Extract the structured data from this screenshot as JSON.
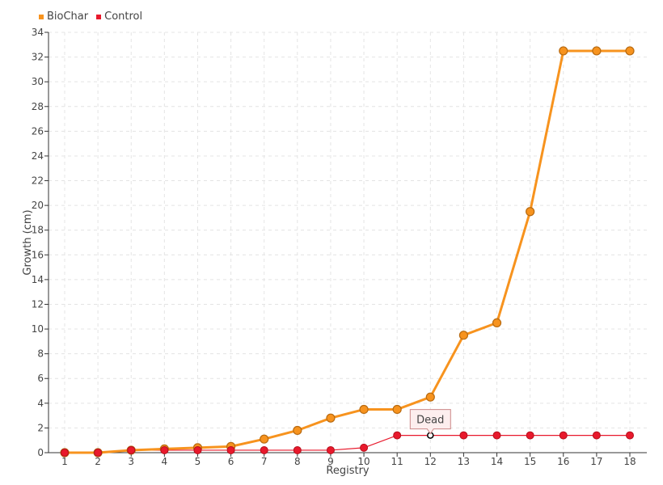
{
  "chart_data": {
    "type": "line",
    "title": "",
    "xlabel": "Registry",
    "ylabel": "Growth (cm)",
    "categories": [
      "1",
      "2",
      "3",
      "4",
      "5",
      "6",
      "7",
      "8",
      "9",
      "10",
      "11",
      "12",
      "13",
      "14",
      "15",
      "16",
      "17",
      "18"
    ],
    "ylim": [
      0,
      34
    ],
    "yticks": [
      0,
      2,
      4,
      6,
      8,
      10,
      12,
      14,
      16,
      18,
      20,
      22,
      24,
      26,
      28,
      30,
      32,
      34
    ],
    "grid": true,
    "legend_position": "top-left",
    "series": [
      {
        "name": "BioChar",
        "color": "#f7931e",
        "values": [
          0,
          0,
          0.2,
          0.3,
          0.4,
          0.5,
          1.1,
          1.8,
          2.8,
          3.5,
          3.5,
          4.5,
          9.5,
          10.5,
          19.5,
          32.5,
          32.5,
          32.5
        ]
      },
      {
        "name": "Control",
        "color": "#e8192c",
        "values": [
          0,
          0,
          0.2,
          0.2,
          0.2,
          0.2,
          0.2,
          0.2,
          0.2,
          0.4,
          1.4,
          1.4,
          1.4,
          1.4,
          1.4,
          1.4,
          1.4,
          1.4
        ]
      }
    ],
    "annotation": {
      "text": "Dead",
      "series": "Control",
      "category": "12"
    }
  }
}
